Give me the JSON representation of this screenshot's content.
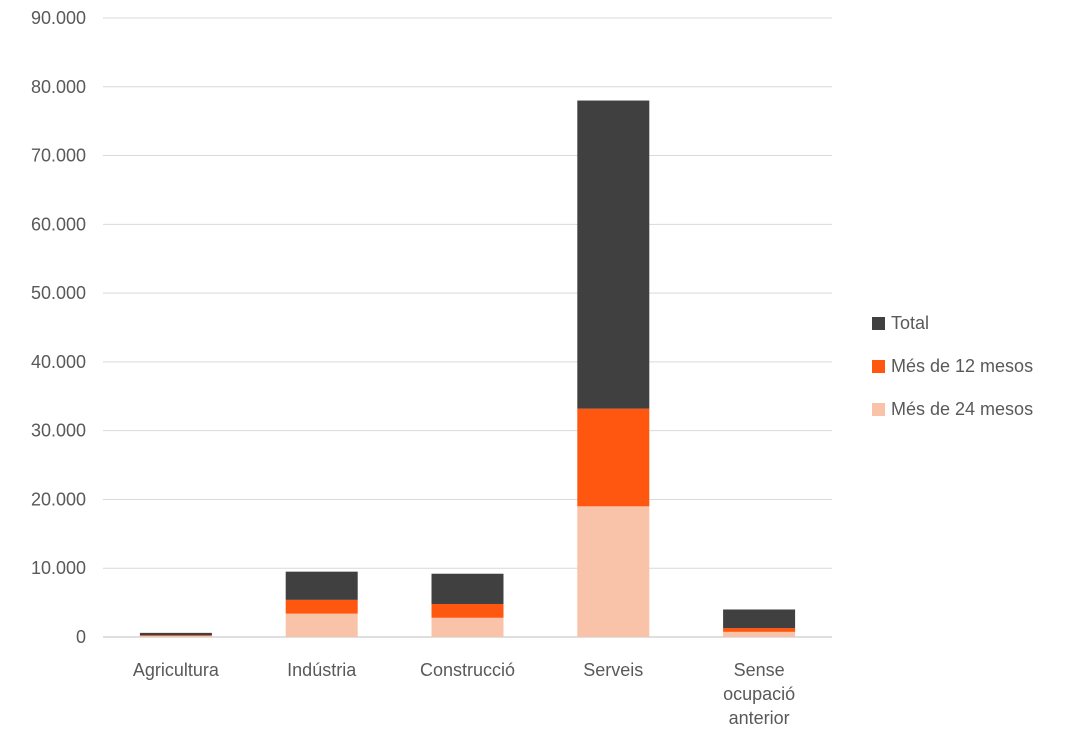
{
  "chart_data": {
    "type": "bar",
    "stacked": true,
    "title": "",
    "xlabel": "",
    "ylabel": "",
    "ylim": [
      0,
      90000
    ],
    "y_ticks": [
      "0",
      "10.000",
      "20.000",
      "30.000",
      "40.000",
      "50.000",
      "60.000",
      "70.000",
      "80.000",
      "90.000"
    ],
    "grid": true,
    "legend_position": "right",
    "categories": [
      [
        "Agricultura"
      ],
      [
        "Indústria"
      ],
      [
        "Construcció"
      ],
      [
        "Serveis"
      ],
      [
        "Sense",
        "ocupació",
        "anterior"
      ]
    ],
    "series": [
      {
        "name": "Més de 24 mesos",
        "color": "#F8C3A8",
        "values": [
          150,
          3400,
          2800,
          19000,
          750
        ]
      },
      {
        "name": "Més de 12 mesos",
        "color": "#FF5610",
        "values": [
          100,
          2000,
          2000,
          14200,
          550
        ]
      },
      {
        "name": "Total",
        "color": "#404040",
        "values": [
          350,
          4100,
          4400,
          44800,
          2700
        ]
      }
    ],
    "legend_order": [
      "Total",
      "Més de 12 mesos",
      "Més de 24 mesos"
    ]
  }
}
